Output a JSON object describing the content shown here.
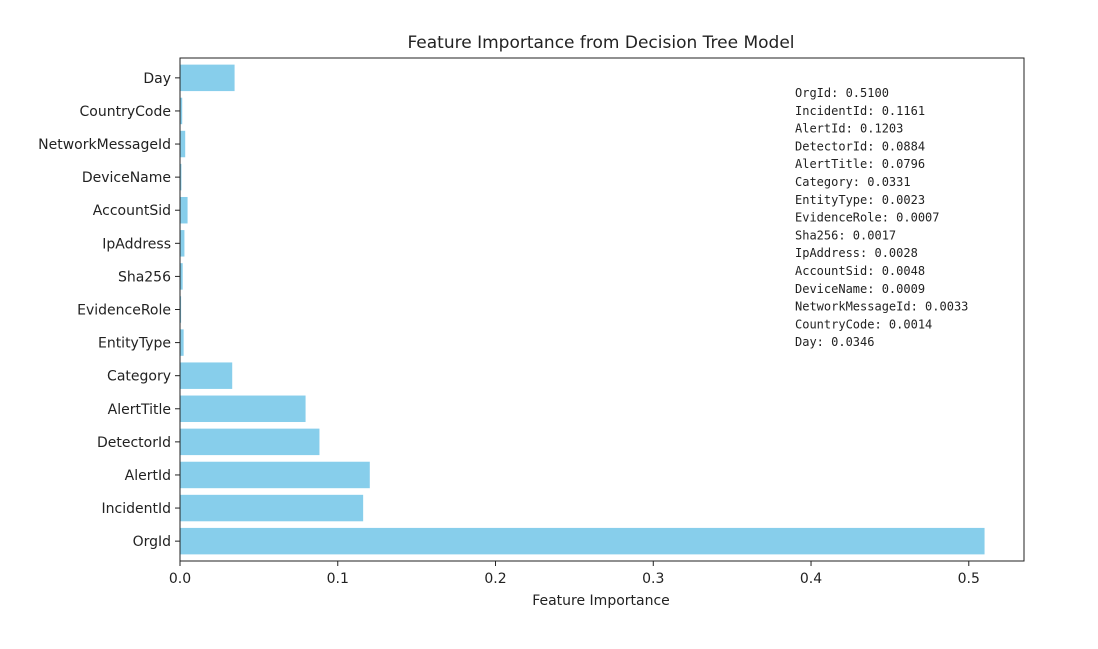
{
  "chart_data": {
    "type": "bar",
    "orientation": "horizontal",
    "title": "Feature Importance from Decision Tree Model",
    "xlabel": "Feature Importance",
    "ylabel": "",
    "xlim": [
      0.0,
      0.535
    ],
    "xticks": [
      0.0,
      0.1,
      0.2,
      0.3,
      0.4,
      0.5
    ],
    "xtick_labels": [
      "0.0",
      "0.1",
      "0.2",
      "0.3",
      "0.4",
      "0.5"
    ],
    "grid": false,
    "bar_color": "#87CEEB",
    "categories": [
      "OrgId",
      "IncidentId",
      "AlertId",
      "DetectorId",
      "AlertTitle",
      "Category",
      "EntityType",
      "EvidenceRole",
      "Sha256",
      "IpAddress",
      "AccountSid",
      "DeviceName",
      "NetworkMessageId",
      "CountryCode",
      "Day"
    ],
    "values": [
      0.51,
      0.1161,
      0.1203,
      0.0884,
      0.0796,
      0.0331,
      0.0023,
      0.0007,
      0.0017,
      0.0028,
      0.0048,
      0.0009,
      0.0033,
      0.0014,
      0.0346
    ],
    "annotation_lines": [
      "OrgId: 0.5100",
      "IncidentId: 0.1161",
      "AlertId: 0.1203",
      "DetectorId: 0.0884",
      "AlertTitle: 0.0796",
      "Category: 0.0331",
      "EntityType: 0.0023",
      "EvidenceRole: 0.0007",
      "Sha256: 0.0017",
      "IpAddress: 0.0028",
      "AccountSid: 0.0048",
      "DeviceName: 0.0009",
      "NetworkMessageId: 0.0033",
      "CountryCode: 0.0014",
      "Day: 0.0346"
    ]
  }
}
